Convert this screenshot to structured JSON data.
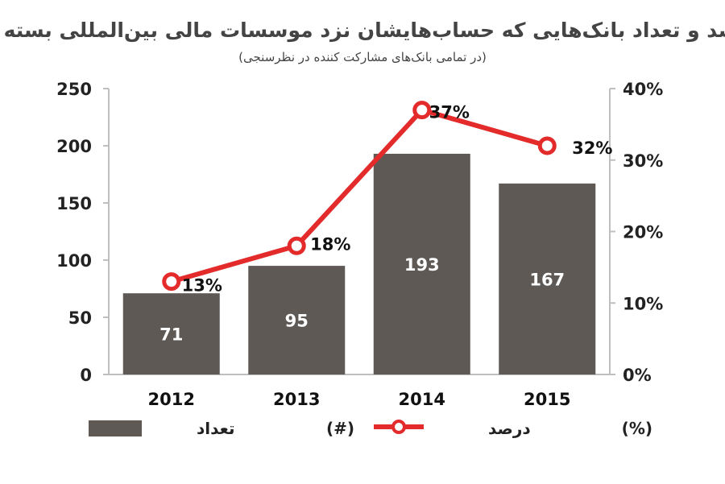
{
  "chart_data": {
    "type": "bar",
    "title": "درصد و تعداد بانک‌هایی که حساب‌هایشان نزد موسسات مالی بین‌المللی بسته شد",
    "subtitle": "(در تمامی بانک‌های مشارکت کننده در نظرسنجی)",
    "categories": [
      "2012",
      "2013",
      "2014",
      "2015"
    ],
    "series": [
      {
        "name": "تعداد",
        "kind": "bar",
        "axis": "left",
        "values": [
          71,
          95,
          193,
          167
        ],
        "labels": [
          "71",
          "95",
          "193",
          "167"
        ]
      },
      {
        "name": "درصد",
        "kind": "line",
        "axis": "right",
        "values": [
          13,
          18,
          37,
          32
        ],
        "labels": [
          "13%",
          "18%",
          "37%",
          "32%"
        ]
      }
    ],
    "y_left": {
      "ylim": [
        0,
        250
      ],
      "ticks": [
        "0",
        "50",
        "100",
        "150",
        "200",
        "250"
      ],
      "unit": "(#)"
    },
    "y_right": {
      "ylim": [
        0,
        40
      ],
      "ticks": [
        "0%",
        "10%",
        "20%",
        "30%",
        "40%"
      ],
      "unit": "(%)"
    },
    "colors": {
      "bar": "#5e5955",
      "line": "#e32b2b",
      "axis": "#bfbfbf",
      "title": "#444444"
    },
    "grid": false,
    "legend_position": "bottom"
  }
}
